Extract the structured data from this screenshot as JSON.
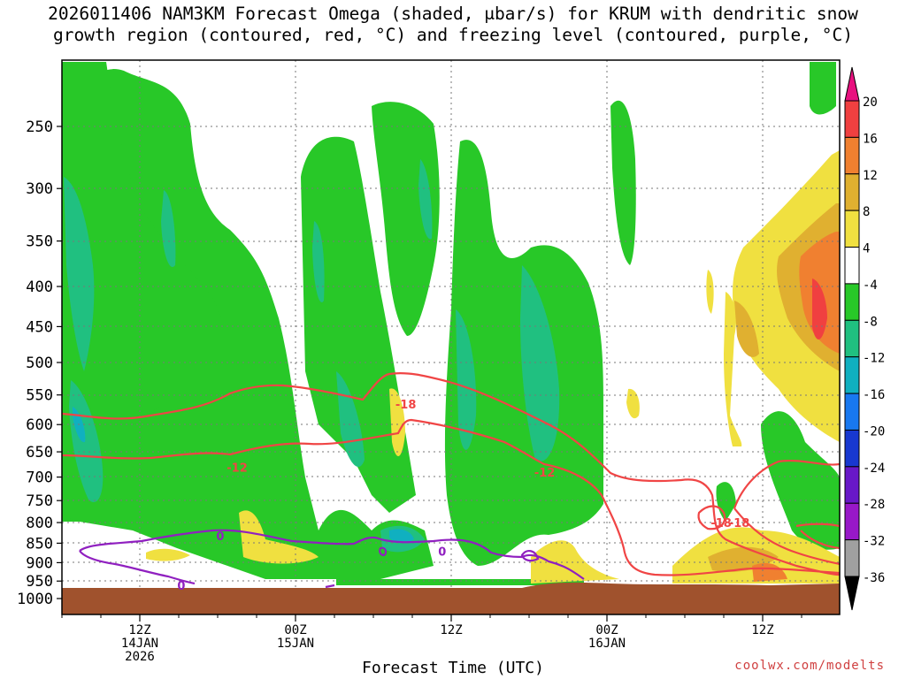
{
  "title_line1": "2026011406 NAM3KM Forecast Omega (shaded, μbar/s) for KRUM with dendritic snow",
  "title_line2": "growth region (contoured, red, °C) and freezing level (contoured, purple, °C)",
  "credit": "coolwx.com/modelts",
  "chart_data": {
    "type": "time-height contour",
    "title": "2026011406 NAM3KM Forecast Omega (shaded, μbar/s) for KRUM with dendritic snow growth region (contoured, red, °C) and freezing level (contoured, purple, °C)",
    "xlabel": "Forecast Time (UTC)",
    "ylabel": "",
    "y_scale": "log-pressure (inverted)",
    "ylim": [
      1000,
      200
    ],
    "y_ticks": [
      250,
      300,
      350,
      400,
      450,
      500,
      550,
      600,
      650,
      700,
      750,
      800,
      850,
      900,
      950,
      1000
    ],
    "x_ticks": [
      {
        "hour": 6,
        "lines": [
          "12Z",
          "14JAN",
          "2026"
        ]
      },
      {
        "hour": 18,
        "lines": [
          "00Z",
          "15JAN"
        ]
      },
      {
        "hour": 30,
        "lines": [
          "12Z"
        ]
      },
      {
        "hour": 42,
        "lines": [
          "00Z",
          "16JAN"
        ]
      },
      {
        "hour": 54,
        "lines": [
          "12Z"
        ]
      }
    ],
    "xlim": [
      0,
      60
    ],
    "grid": true,
    "colorbar": {
      "labels": [
        "20",
        "16",
        "12",
        "8",
        "4",
        "-4",
        "-8",
        "-12",
        "-16",
        "-20",
        "-24",
        "-28",
        "-32",
        "-36"
      ],
      "colors": [
        "#e8117f",
        "#f04040",
        "#f08030",
        "#e0b030",
        "#f0e040",
        "#ffffff",
        "#28c828",
        "#20c080",
        "#10b0c0",
        "#1878f0",
        "#1838d0",
        "#6818c8",
        "#9818c8",
        "#a0a0a0",
        "#000000"
      ]
    },
    "contour_labels": [
      {
        "text": "-18",
        "color": "#f04545",
        "hour": 26.5,
        "p": 565
      },
      {
        "text": "-12",
        "color": "#f04545",
        "hour": 13.5,
        "p": 680
      },
      {
        "text": "-12",
        "color": "#f04545",
        "hour": 37.2,
        "p": 690
      },
      {
        "text": "-18",
        "color": "#f04545",
        "hour": 50.8,
        "p": 800
      },
      {
        "text": "-18",
        "color": "#f04545",
        "hour": 52.2,
        "p": 800
      },
      {
        "text": "0",
        "color": "#9020c0",
        "hour": 12.2,
        "p": 832
      },
      {
        "text": "0",
        "color": "#9020c0",
        "hour": 29.3,
        "p": 870
      },
      {
        "text": "0",
        "color": "#9020c0",
        "hour": 9.2,
        "p": 962
      }
    ],
    "ground": {
      "color": "#a0522d",
      "p_top": 970
    }
  }
}
